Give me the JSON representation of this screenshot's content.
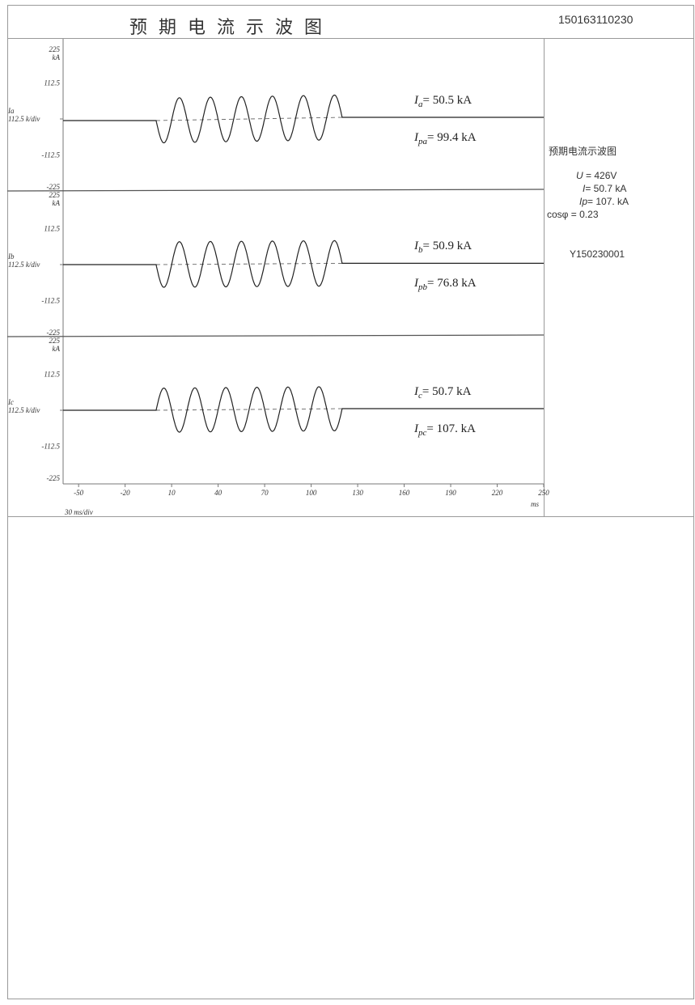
{
  "header": {
    "title": "预期电流示波图",
    "doc_number": "150163110230"
  },
  "info_panel": {
    "caption": "预期电流示波图",
    "u_label": "U",
    "u_value": " = 426V",
    "i_label": "I",
    "i_value": "=  50.7 kA",
    "ip_label": "Ip",
    "ip_value": "= 107. kA",
    "cos_line": "cosφ = 0.23",
    "serial": "Y150230001"
  },
  "chart_data": {
    "type": "line",
    "x_axis": {
      "unit": "ms",
      "scale_label": "30 ms/div",
      "ticks": [
        -50,
        -20,
        10,
        40,
        70,
        100,
        130,
        160,
        190,
        220,
        250
      ],
      "range": [
        -60,
        250
      ]
    },
    "y_axis": {
      "unit": "kA",
      "ticks": [
        "225",
        "112.5",
        "-112.5",
        "-225"
      ],
      "range": [
        -225,
        225
      ]
    },
    "panels": [
      {
        "channel": "Ia",
        "channel_label": "Ia",
        "scale_label": "112.5 k/div",
        "top_label": "225",
        "unit_label": "kA",
        "tick_labels": [
          "112.5",
          "-112.5",
          "-225"
        ],
        "measurement_1": {
          "label": "I",
          "sub": "a",
          "value": "= 50.5 kA"
        },
        "measurement_2": {
          "label": "I",
          "sub": "pa",
          "value": "= 99.4 kA"
        },
        "offset_start": -5,
        "offset_end": 5,
        "wave": {
          "start_ms": 0,
          "end_ms": 120,
          "cycles": 6,
          "first_half": "negative",
          "amplitude": 70
        }
      },
      {
        "channel": "Ib",
        "channel_label": "Ib",
        "scale_label": "112.5 k/div",
        "top_label": "225",
        "unit_label": "kA",
        "tick_labels": [
          "112.5",
          "-112.5",
          "-225"
        ],
        "measurement_1": {
          "label": "I",
          "sub": "b",
          "value": "= 50.9 kA"
        },
        "measurement_2": {
          "label": "I",
          "sub": "pb",
          "value": "= 76.8 kA"
        },
        "offset_start": 0,
        "offset_end": 4,
        "wave": {
          "start_ms": 0,
          "end_ms": 120,
          "cycles": 6,
          "first_half": "negative",
          "amplitude": 71
        }
      },
      {
        "channel": "Ic",
        "channel_label": "Ic",
        "scale_label": "112.5 k/div",
        "top_label": "225",
        "unit_label": "kA",
        "tick_labels": [
          "112.5",
          "-112.5",
          "-225"
        ],
        "measurement_1": {
          "label": "I",
          "sub": "c",
          "value": "= 50.7 kA"
        },
        "measurement_2": {
          "label": "I",
          "sub": "pc",
          "value": "= 107. kA"
        },
        "offset_start": 0,
        "offset_end": 5,
        "wave": {
          "start_ms": 0,
          "end_ms": 120,
          "cycles": 6,
          "first_half": "positive",
          "amplitude": 69
        }
      }
    ]
  }
}
